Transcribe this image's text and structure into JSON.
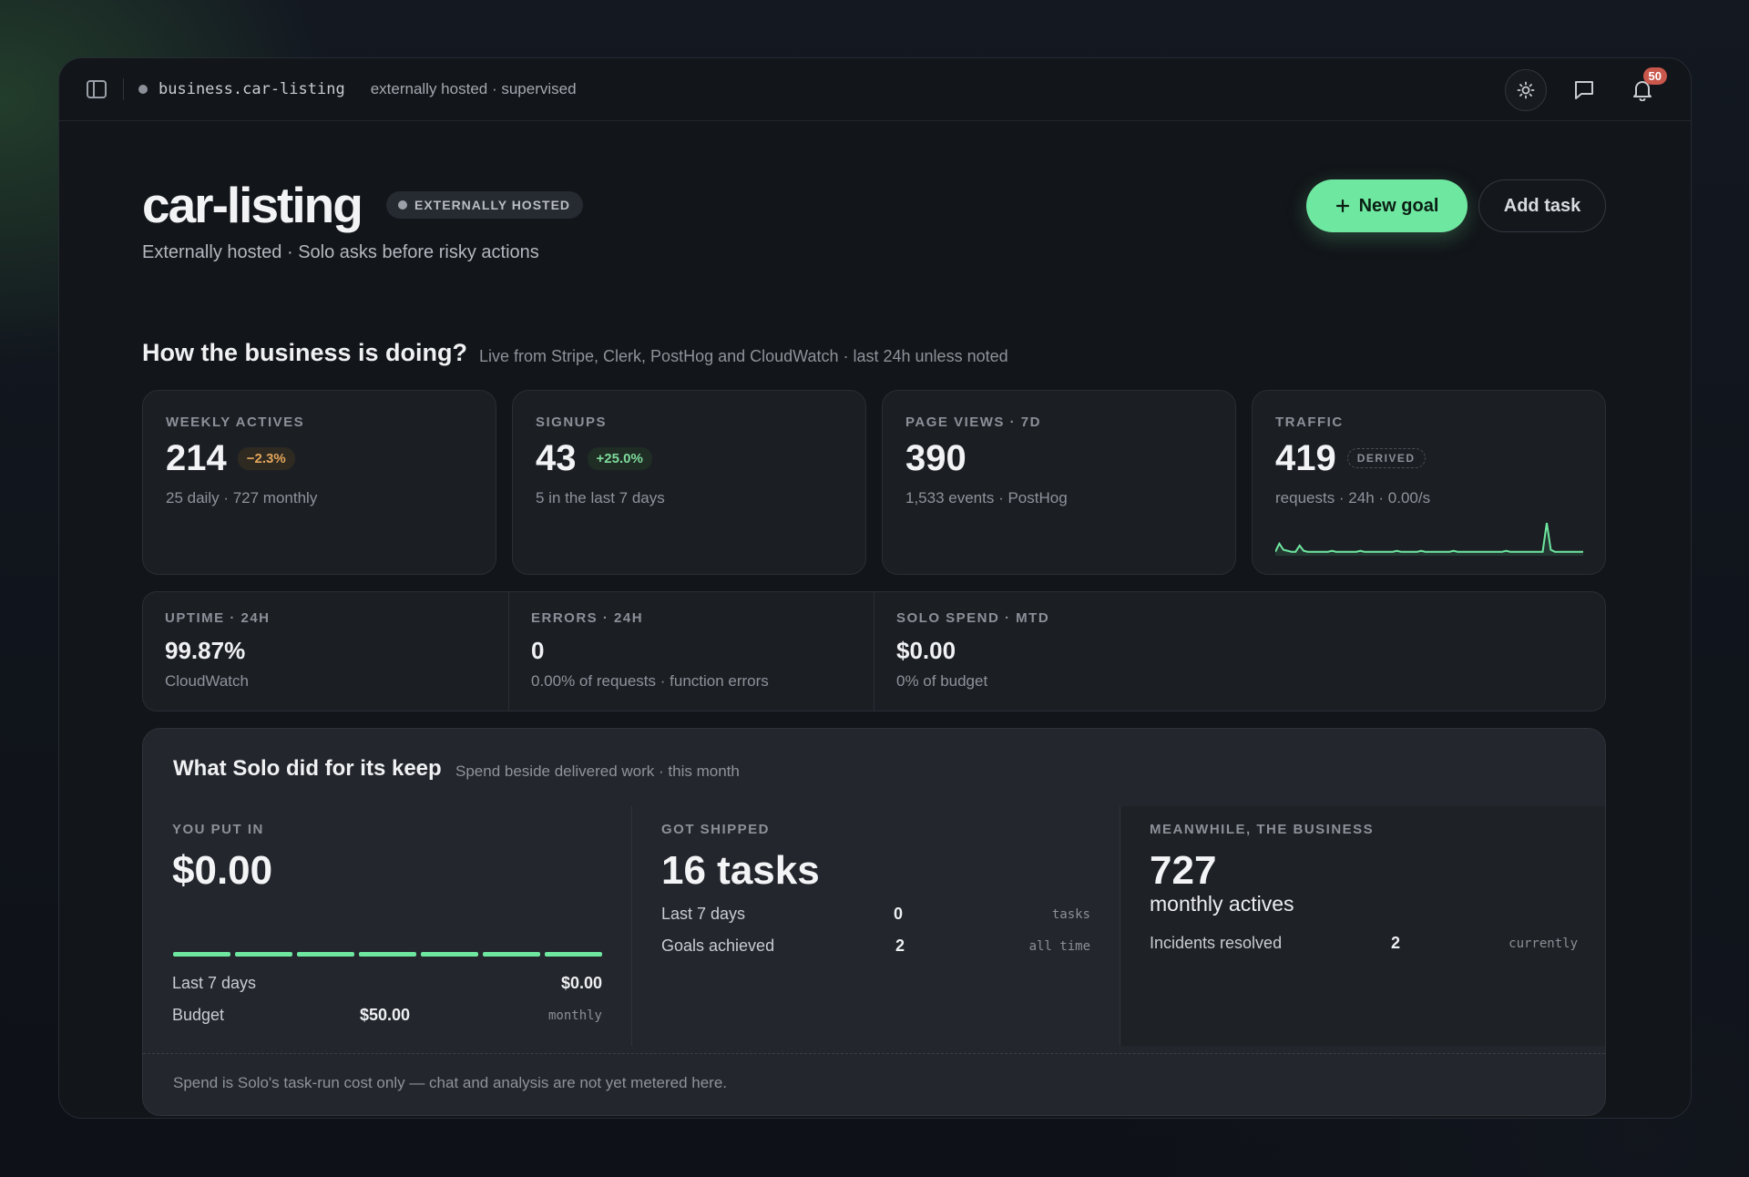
{
  "topbar": {
    "slug": "business.car-listing",
    "meta": "externally hosted · supervised",
    "notification_count": "50"
  },
  "header": {
    "title": "car-listing",
    "host_badge": "EXTERNALLY HOSTED",
    "subtitle": "Externally hosted · Solo asks before risky actions",
    "new_goal_label": "New goal",
    "add_task_label": "Add task"
  },
  "section": {
    "title": "How the business is doing?",
    "subtitle": "Live from Stripe, Clerk, PostHog and CloudWatch · last 24h unless noted"
  },
  "cards": [
    {
      "label": "WEEKLY ACTIVES",
      "value": "214",
      "delta": "−2.3%",
      "note": "25 daily · 727 monthly"
    },
    {
      "label": "SIGNUPS",
      "value": "43",
      "delta": "+25.0%",
      "note": "5 in the last 7 days"
    },
    {
      "label": "PAGE VIEWS · 7D",
      "value": "390",
      "note": "1,533 events · PostHog"
    },
    {
      "label": "TRAFFIC",
      "value": "419",
      "tag": "DERIVED",
      "note": "requests · 24h · 0.00/s",
      "sparkline": [
        2,
        10,
        4,
        3,
        2,
        2,
        8,
        3,
        2,
        2,
        2,
        2,
        2,
        2,
        3,
        2,
        2,
        2,
        2,
        2,
        2,
        3,
        2,
        2,
        2,
        2,
        2,
        2,
        2,
        2,
        3,
        2,
        2,
        2,
        2,
        2,
        3,
        2,
        2,
        2,
        2,
        2,
        2,
        2,
        3,
        2,
        2,
        2,
        2,
        2,
        2,
        2,
        2,
        2,
        2,
        2,
        2,
        3,
        2,
        2,
        2,
        2,
        2,
        2,
        2,
        2,
        2,
        30,
        4,
        2,
        2,
        2,
        2,
        2,
        2,
        2,
        2
      ]
    }
  ],
  "stats": [
    {
      "label": "UPTIME · 24H",
      "value": "99.87%",
      "note": "CloudWatch"
    },
    {
      "label": "ERRORS · 24H",
      "value": "0",
      "note": "0.00% of requests · function errors"
    },
    {
      "label": "SOLO SPEND · MTD",
      "value": "$0.00",
      "note": "0% of budget"
    }
  ],
  "keep": {
    "title": "What Solo did for its keep",
    "subtitle": "Spend beside delivered work · this month",
    "put_in": {
      "label": "YOU PUT IN",
      "value": "$0.00",
      "rows": [
        {
          "label": "Last 7 days",
          "value": "$0.00"
        },
        {
          "label": "Budget",
          "value": "$50.00",
          "tail": "monthly"
        }
      ]
    },
    "shipped": {
      "label": "GOT SHIPPED",
      "value": "16 tasks",
      "rows": [
        {
          "label": "Last 7 days",
          "value": "0",
          "tail": "tasks"
        },
        {
          "label": "Goals achieved",
          "value": "2",
          "tail": "all time"
        }
      ]
    },
    "business": {
      "label": "MEANWHILE, THE BUSINESS",
      "value": "727",
      "value_sub": "monthly actives",
      "rows": [
        {
          "label": "Incidents resolved",
          "value": "2",
          "tail": "currently"
        }
      ]
    },
    "footnote": "Spend is Solo's task-run cost only — chat and analysis are not yet metered here."
  }
}
